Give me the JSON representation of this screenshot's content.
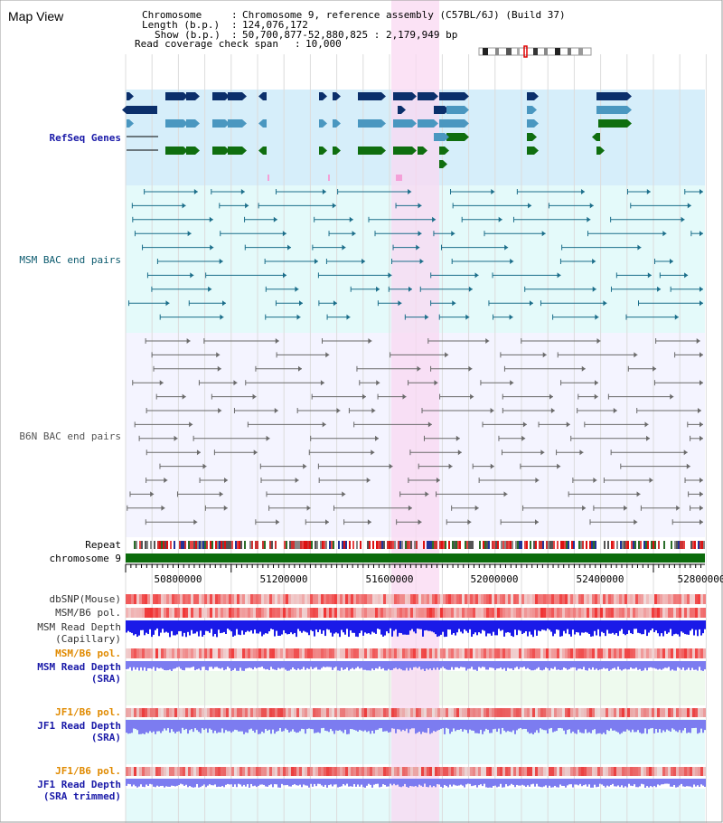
{
  "view_title": "Map View",
  "info": {
    "chromosome_label": "Chromosome",
    "chromosome_value": "Chromosome 9, reference assembly (C57BL/6J) (Build 37)",
    "length_label": "Length (b.p.)",
    "length_value": "124,076,172",
    "show_label": "Show (b.p.)",
    "show_value": "50,700,877-52,880,825 : 2,179,949 bp",
    "coverage_label": "Read coverage check span",
    "coverage_value": "10,000"
  },
  "tracks": {
    "refseq": "RefSeq Genes",
    "msm_bac": "MSM BAC end pairs",
    "b6n_bac": "B6N BAC end pairs",
    "repeat": "Repeat",
    "chromosome": "chromosome 9",
    "dbsnp": "dbSNP(Mouse)",
    "msm_b6_pol_1": "MSM/B6 pol.",
    "msm_depth_cap_1": "MSM Read Depth",
    "msm_depth_cap_2": "(Capillary)",
    "msm_b6_pol_2": "MSM/B6 pol.",
    "msm_depth_sra_1": "MSM Read Depth",
    "msm_depth_sra_2": "(SRA)",
    "jf1_b6_pol_1": "JF1/B6 pol.",
    "jf1_depth_sra_1": "JF1 Read Depth",
    "jf1_depth_sra_2": "(SRA)",
    "jf1_b6_pol_2": "JF1/B6 pol.",
    "jf1_depth_trim_1": "JF1 Read Depth",
    "jf1_depth_trim_2": "(SRA trimmed)"
  },
  "axis": {
    "ticks": [
      "50800000",
      "51200000",
      "51600000",
      "52000000",
      "52400000",
      "52800000"
    ]
  },
  "colors": {
    "highlight": "#fad8f2",
    "refseq_bg": "#d6eefa",
    "msm_bg": "#e4fafa",
    "b6n_bg": "#f4f4ff",
    "dark_gene": "#0b2f6b",
    "mid_gene": "#4a97c0",
    "green_gene": "#0f6e0f",
    "chrom_green": "#0b6b0b",
    "label_navy": "#1a1aa8",
    "label_teal": "#0b5a6e",
    "label_gray": "#555555",
    "label_orange": "#e08a00",
    "depth_blue": "#1a1ae8",
    "depth_light": "#7c7cf0"
  }
}
